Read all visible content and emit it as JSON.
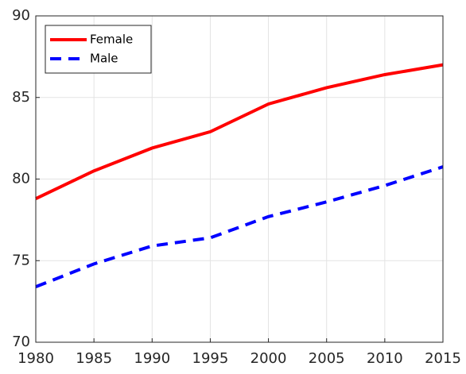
{
  "chart_data": {
    "type": "line",
    "x": [
      1980,
      1985,
      1990,
      1995,
      2000,
      2005,
      2010,
      2015
    ],
    "series": [
      {
        "name": "Female",
        "color": "#ff0000",
        "linestyle": "solid",
        "values": [
          78.8,
          80.5,
          81.9,
          82.9,
          84.6,
          85.6,
          86.4,
          87.0
        ]
      },
      {
        "name": "Male",
        "color": "#0000ff",
        "linestyle": "dashed",
        "values": [
          73.4,
          74.8,
          75.9,
          76.4,
          77.7,
          78.6,
          79.6,
          80.75
        ]
      }
    ],
    "xlim": [
      1980,
      2015
    ],
    "xticks": [
      1980,
      1985,
      1990,
      1995,
      2000,
      2005,
      2010,
      2015
    ],
    "ylim": [
      70,
      90
    ],
    "yticks": [
      70,
      75,
      80,
      85,
      90
    ],
    "grid": true,
    "legend": "upper-left"
  }
}
